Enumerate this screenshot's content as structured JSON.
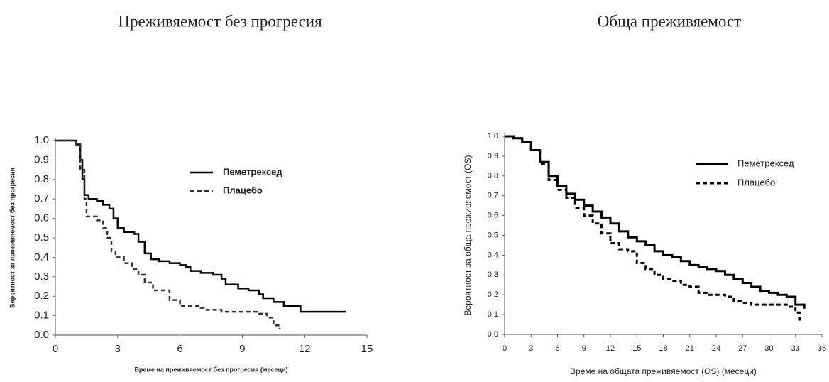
{
  "chart_data": [
    {
      "type": "line",
      "title": "Преживяемост без прогресия",
      "xlabel": "Време на преживяемост без прогресия (месеци)",
      "ylabel": "Вероятност за преживяемост без прогресия",
      "xlim": [
        0,
        15
      ],
      "xticks": [
        0,
        3,
        6,
        9,
        12,
        15
      ],
      "ylim": [
        0,
        1
      ],
      "yticks": [
        {
          "value": 0,
          "label": "0.0"
        },
        0.1,
        0.2,
        0.3,
        0.4,
        0.5,
        0.6,
        0.7,
        0.8,
        0.9,
        {
          "value": 1,
          "label": "1.0"
        }
      ],
      "legend": "upper right",
      "step": true,
      "series": [
        {
          "name": "Пеметрексед",
          "color": "#000000",
          "linestyle": "solid",
          "x": [
            0,
            0.9,
            1.0,
            1.2,
            1.3,
            1.4,
            1.6,
            2.0,
            2.3,
            2.6,
            2.8,
            3.0,
            3.3,
            3.8,
            4.0,
            4.3,
            4.6,
            5.0,
            5.5,
            6.0,
            6.3,
            6.5,
            7.0,
            7.6,
            8.0,
            8.2,
            8.8,
            9.3,
            9.8,
            10.0,
            10.5,
            11.0,
            11.8,
            14.0
          ],
          "values": [
            1.0,
            1.0,
            0.98,
            0.9,
            0.8,
            0.72,
            0.7,
            0.69,
            0.67,
            0.65,
            0.6,
            0.55,
            0.53,
            0.52,
            0.48,
            0.42,
            0.39,
            0.38,
            0.37,
            0.36,
            0.35,
            0.33,
            0.32,
            0.31,
            0.29,
            0.26,
            0.24,
            0.23,
            0.21,
            0.19,
            0.17,
            0.15,
            0.12,
            0.12
          ]
        },
        {
          "name": "Плацебо",
          "color": "#333333",
          "linestyle": "dashed",
          "x": [
            0,
            1.0,
            1.2,
            1.4,
            1.5,
            2.0,
            2.3,
            2.5,
            2.7,
            2.9,
            3.3,
            3.7,
            4.0,
            4.3,
            4.7,
            5.5,
            6.0,
            7.0,
            7.2,
            8.0,
            9.8,
            10.2,
            10.5,
            10.8
          ],
          "values": [
            1.0,
            0.98,
            0.85,
            0.7,
            0.61,
            0.59,
            0.55,
            0.5,
            0.43,
            0.4,
            0.37,
            0.34,
            0.31,
            0.27,
            0.23,
            0.18,
            0.15,
            0.14,
            0.13,
            0.12,
            0.11,
            0.09,
            0.05,
            0.03
          ]
        }
      ]
    },
    {
      "type": "line",
      "title": "Обща преживяемост",
      "xlabel": "Време на общата преживяемост (OS) (месеци)",
      "ylabel": "Вероятност за обща преживяемост (OS)",
      "xlim": [
        0,
        36
      ],
      "xticks": [
        0,
        3,
        6,
        9,
        12,
        15,
        18,
        21,
        24,
        27,
        30,
        33,
        36
      ],
      "ylim": [
        0,
        1
      ],
      "yticks": [
        {
          "value": 0,
          "label": "0.0"
        },
        0.1,
        0.2,
        0.3,
        0.4,
        0.5,
        0.6,
        0.7,
        0.8,
        0.9,
        {
          "value": 1,
          "label": "1.0"
        }
      ],
      "legend": "upper right",
      "step": true,
      "series": [
        {
          "name": "Пеметрексед",
          "color": "#000000",
          "linestyle": "solid",
          "x": [
            0,
            1,
            2,
            3,
            4,
            5,
            6,
            7,
            8,
            9,
            10,
            11,
            12,
            13,
            14,
            15,
            16,
            17,
            18,
            19,
            20,
            21,
            22,
            23,
            24,
            25,
            26,
            27,
            28,
            29,
            30,
            31,
            32,
            33,
            34
          ],
          "values": [
            1.0,
            0.99,
            0.97,
            0.93,
            0.87,
            0.8,
            0.75,
            0.71,
            0.68,
            0.65,
            0.62,
            0.59,
            0.56,
            0.52,
            0.49,
            0.47,
            0.45,
            0.42,
            0.4,
            0.39,
            0.37,
            0.35,
            0.34,
            0.33,
            0.32,
            0.3,
            0.28,
            0.26,
            0.24,
            0.22,
            0.21,
            0.2,
            0.19,
            0.15,
            0.13
          ]
        },
        {
          "name": "Плацебо",
          "color": "#000000",
          "linestyle": "dashed",
          "x": [
            0,
            1,
            2,
            3,
            4,
            5,
            6,
            7,
            8,
            9,
            10,
            11,
            12,
            13,
            14,
            15,
            16,
            17,
            18,
            19,
            20,
            21,
            22,
            23,
            24,
            25,
            26,
            27,
            28,
            32,
            33,
            33.5
          ],
          "values": [
            1.0,
            0.99,
            0.97,
            0.93,
            0.86,
            0.78,
            0.73,
            0.69,
            0.64,
            0.6,
            0.56,
            0.51,
            0.46,
            0.43,
            0.42,
            0.36,
            0.33,
            0.3,
            0.28,
            0.27,
            0.25,
            0.24,
            0.21,
            0.2,
            0.2,
            0.19,
            0.17,
            0.16,
            0.15,
            0.14,
            0.11,
            0.07
          ]
        }
      ]
    }
  ]
}
